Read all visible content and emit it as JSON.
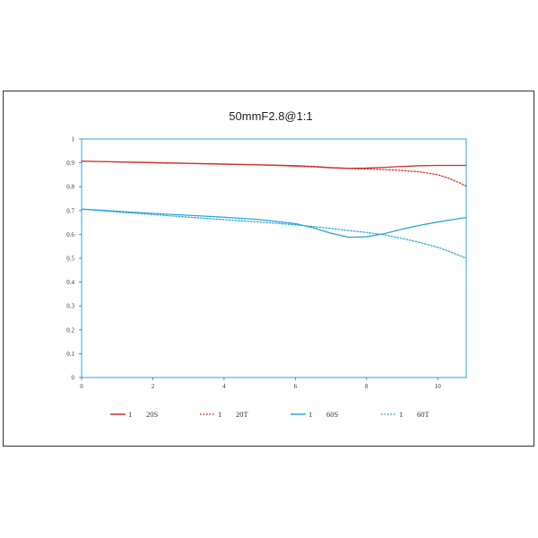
{
  "chart_data": {
    "type": "line",
    "title": "50mmF2.8@1:1",
    "xlabel": "",
    "ylabel": "",
    "xlim": [
      0,
      10.8
    ],
    "ylim": [
      0,
      1
    ],
    "x_ticks": [
      "0",
      "2",
      "4",
      "6",
      "8",
      "10"
    ],
    "y_ticks": [
      "0",
      "0.1",
      "0.2",
      "0.3",
      "0.4",
      "0.5",
      "0.6",
      "0.7",
      "0.8",
      "0.9",
      "1"
    ],
    "grid": false,
    "legend_position": "bottom",
    "series": [
      {
        "name": "1 20S",
        "legend_num": "1",
        "legend_label": "20S",
        "color": "#d0332b",
        "style": "solid",
        "x": [
          0,
          1,
          2,
          3,
          4,
          5,
          6,
          6.5,
          7,
          7.5,
          8,
          8.5,
          9,
          9.5,
          10,
          10.5,
          10.8
        ],
        "y": [
          0.907,
          0.904,
          0.901,
          0.898,
          0.895,
          0.892,
          0.888,
          0.885,
          0.88,
          0.877,
          0.878,
          0.881,
          0.885,
          0.888,
          0.889,
          0.889,
          0.889
        ]
      },
      {
        "name": "1 20T",
        "legend_num": "1",
        "legend_label": "20T",
        "color": "#d0332b",
        "style": "dotted",
        "x": [
          0,
          1,
          2,
          3,
          4,
          5,
          6,
          6.5,
          7,
          7.5,
          8,
          8.5,
          9,
          9.5,
          10,
          10.3,
          10.6,
          10.8
        ],
        "y": [
          0.907,
          0.904,
          0.9,
          0.897,
          0.894,
          0.891,
          0.886,
          0.883,
          0.879,
          0.876,
          0.874,
          0.872,
          0.868,
          0.862,
          0.85,
          0.836,
          0.817,
          0.802
        ]
      },
      {
        "name": "1 60S",
        "legend_num": "1",
        "legend_label": "60S",
        "color": "#2aa7d8",
        "style": "solid",
        "x": [
          0,
          1,
          2,
          3,
          4,
          5,
          6,
          6.5,
          7,
          7.5,
          8,
          8.5,
          9,
          9.5,
          10,
          10.5,
          10.8
        ],
        "y": [
          0.706,
          0.697,
          0.688,
          0.68,
          0.672,
          0.662,
          0.645,
          0.628,
          0.605,
          0.588,
          0.59,
          0.603,
          0.622,
          0.638,
          0.652,
          0.664,
          0.671
        ]
      },
      {
        "name": "1 60T",
        "legend_num": "1",
        "legend_label": "60T",
        "color": "#2aa7d8",
        "style": "dotted",
        "x": [
          0,
          1,
          2,
          3,
          4,
          5,
          6,
          6.5,
          7,
          7.5,
          8,
          8.5,
          9,
          9.5,
          10,
          10.3,
          10.6,
          10.8
        ],
        "y": [
          0.706,
          0.694,
          0.683,
          0.672,
          0.662,
          0.652,
          0.64,
          0.633,
          0.625,
          0.616,
          0.608,
          0.598,
          0.583,
          0.566,
          0.546,
          0.53,
          0.512,
          0.5
        ]
      }
    ]
  }
}
